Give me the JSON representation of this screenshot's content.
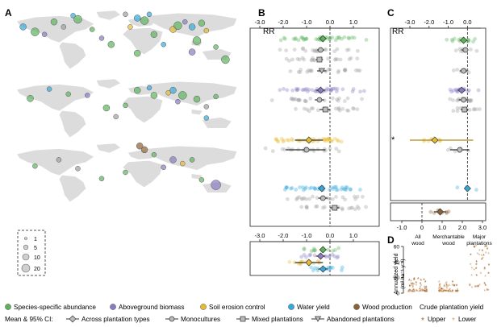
{
  "colors": {
    "green": "#5cb35c",
    "purple": "#8a7bc2",
    "yellow": "#e8bb2f",
    "blue": "#35a9dc",
    "brown": "#8b6135",
    "gray": "#9e9e9e",
    "land": "#dcdcdc",
    "ink": "#222222"
  },
  "panels": {
    "a": "A",
    "b": "B",
    "c": "C",
    "d": "D"
  },
  "size_legend": [
    "1",
    "5",
    "10",
    "20"
  ],
  "axes": {
    "rr_label": "RR",
    "b_ticks": [
      "-3.0",
      "-2.0",
      "-1.0",
      "0.0",
      "1.0"
    ],
    "c_top_ticks": [
      "-3.0",
      "-2.0",
      "-1.0",
      "0.0"
    ],
    "c_bottom_ticks": [
      "-1.0",
      "0",
      "1.0",
      "2.0",
      "3.0"
    ],
    "d_ticks": [
      "0",
      "20",
      "40",
      "60"
    ],
    "d_ylabel_1": "Annualized yield",
    "d_ylabel_2": "(m³ ha⁻¹ y⁻¹)"
  },
  "d_groups": [
    {
      "l1": "All",
      "l2": "wood"
    },
    {
      "l1": "Merchantable",
      "l2": "wood"
    },
    {
      "l1": "Major",
      "l2": "plantations"
    }
  ],
  "c_star": "*",
  "legend": {
    "categories": [
      {
        "label": "Species-specific abundance",
        "color": "#5cb35c"
      },
      {
        "label": "Aboveground biomass",
        "color": "#8a7bc2"
      },
      {
        "label": "Soil erosion control",
        "color": "#e8bb2f"
      },
      {
        "label": "Water yield",
        "color": "#35a9dc"
      },
      {
        "label": "Wood production",
        "color": "#8b6135"
      }
    ],
    "ci_title": "Mean & 95% CI:",
    "ci_items": [
      "Across plantation types",
      "Monocultures",
      "Mixed plantations",
      "Abandoned plantations"
    ],
    "crude_title": "Crude plantation yield",
    "crude_items": [
      "Upper",
      "Lower"
    ]
  },
  "chart_data": [
    {
      "type": "scatter",
      "panel": "B",
      "xlabel": "RR",
      "xlim": [
        -3.0,
        1.0
      ],
      "rows": [
        {
          "group": "Species-specific abundance",
          "type": "Across plantation types",
          "mean": -0.3,
          "ci": [
            -0.45,
            -0.15
          ]
        },
        {
          "group": "Species-specific abundance",
          "type": "Monocultures",
          "mean": -0.4,
          "ci": [
            -0.55,
            -0.25
          ]
        },
        {
          "group": "Species-specific abundance",
          "type": "Mixed plantations",
          "mean": -0.45,
          "ci": [
            -0.6,
            -0.3
          ]
        },
        {
          "group": "Species-specific abundance",
          "type": "Abandoned plantations",
          "mean": -0.35,
          "ci": [
            -0.55,
            -0.15
          ]
        },
        {
          "group": "Aboveground biomass",
          "type": "Across plantation types",
          "mean": -0.4,
          "ci": [
            -0.6,
            -0.2
          ]
        },
        {
          "group": "Aboveground biomass",
          "type": "Monocultures",
          "mean": -0.45,
          "ci": [
            -0.65,
            -0.25
          ]
        },
        {
          "group": "Aboveground biomass",
          "type": "Mixed plantations",
          "mean": -0.2,
          "ci": [
            -0.45,
            0.0
          ]
        },
        {
          "group": "Soil erosion control",
          "type": "Across plantation types",
          "mean": -0.9,
          "ci": [
            -1.5,
            -0.3
          ]
        },
        {
          "group": "Soil erosion control",
          "type": "Monocultures",
          "mean": -1.0,
          "ci": [
            -1.9,
            -0.2
          ]
        },
        {
          "group": "Water yield",
          "type": "Across plantation types",
          "mean": -0.35,
          "ci": [
            -0.5,
            -0.2
          ]
        },
        {
          "group": "Water yield",
          "type": "Monocultures",
          "mean": -0.3,
          "ci": [
            -0.5,
            -0.1
          ]
        },
        {
          "group": "Water yield",
          "type": "Mixed plantations",
          "mean": 0.2,
          "ci": [
            0.0,
            0.4
          ]
        }
      ]
    },
    {
      "type": "scatter",
      "panel": "B (bottom)",
      "xlim": [
        -3.0,
        1.0
      ],
      "rows": [
        {
          "group": "Species-specific abundance",
          "type": "Across plantation types",
          "mean": -0.3,
          "ci": [
            -0.45,
            -0.15
          ]
        },
        {
          "group": "Aboveground biomass",
          "type": "Across plantation types",
          "mean": -0.4,
          "ci": [
            -0.6,
            -0.2
          ]
        },
        {
          "group": "Soil erosion control",
          "type": "Across plantation types",
          "mean": -0.9,
          "ci": [
            -1.5,
            -0.3
          ]
        },
        {
          "group": "Water yield",
          "type": "Across plantation types",
          "mean": -0.3,
          "ci": [
            -0.5,
            -0.1
          ]
        }
      ]
    },
    {
      "type": "scatter",
      "panel": "C",
      "xlabel": "RR",
      "xlim_top": [
        -3.0,
        0.7
      ],
      "xlim_bottom": [
        -1.0,
        3.0
      ],
      "rows": [
        {
          "group": "Species-specific abundance",
          "type": "Across plantation types",
          "mean": -0.2,
          "ci": [
            -0.4,
            0.0
          ]
        },
        {
          "group": "Aboveground biomass",
          "type": "Across plantation types",
          "mean": -0.3,
          "ci": [
            -0.5,
            -0.1
          ]
        },
        {
          "group": "Soil erosion control",
          "type": "Across plantation types",
          "mean": -1.7,
          "ci": [
            -3.0,
            0.3
          ]
        },
        {
          "group": "Wood production",
          "type": "Across plantation types",
          "mean": 0.9,
          "ci": [
            0.6,
            1.2
          ]
        }
      ]
    },
    {
      "type": "scatter",
      "panel": "D",
      "ylabel": "Annualized yield (m³ ha⁻¹ y⁻¹)",
      "ylim": [
        0,
        60
      ],
      "categories": [
        "All wood",
        "Merchantable wood",
        "Major plantations"
      ],
      "series": [
        {
          "name": "Upper",
          "values": [
            18,
            14,
            62
          ]
        },
        {
          "name": "Lower",
          "values": [
            1,
            1,
            2
          ]
        }
      ]
    }
  ]
}
